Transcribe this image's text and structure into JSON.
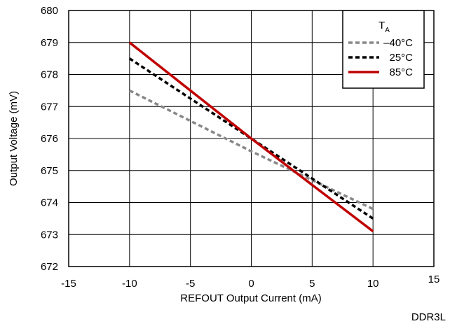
{
  "chart_data": {
    "type": "line",
    "xlabel": "REFOUT Output Current (mA)",
    "ylabel": "Output Voltage (mV)",
    "xlim": [
      -15,
      15
    ],
    "ylim": [
      672,
      680
    ],
    "xticks": [
      -15,
      -10,
      -5,
      0,
      5,
      10,
      15
    ],
    "yticks": [
      672,
      673,
      674,
      675,
      676,
      677,
      678,
      679,
      680
    ],
    "grid": true,
    "legend": {
      "title": "T",
      "title_subscript": "A",
      "placement": "top-right"
    },
    "series": [
      {
        "name": "–40°C",
        "color": "#888888",
        "dash": "dashed",
        "x": [
          -10,
          0,
          10
        ],
        "y": [
          677.5,
          675.6,
          673.8
        ]
      },
      {
        "name": "25°C",
        "color": "#000000",
        "dash": "dashed",
        "x": [
          -10,
          0,
          10
        ],
        "y": [
          678.5,
          676.0,
          673.5
        ]
      },
      {
        "name": "85°C",
        "color": "#c00000",
        "dash": "solid",
        "x": [
          -10,
          0,
          10
        ],
        "y": [
          679.0,
          676.0,
          673.1
        ]
      }
    ]
  },
  "footnote": "DDR3L"
}
